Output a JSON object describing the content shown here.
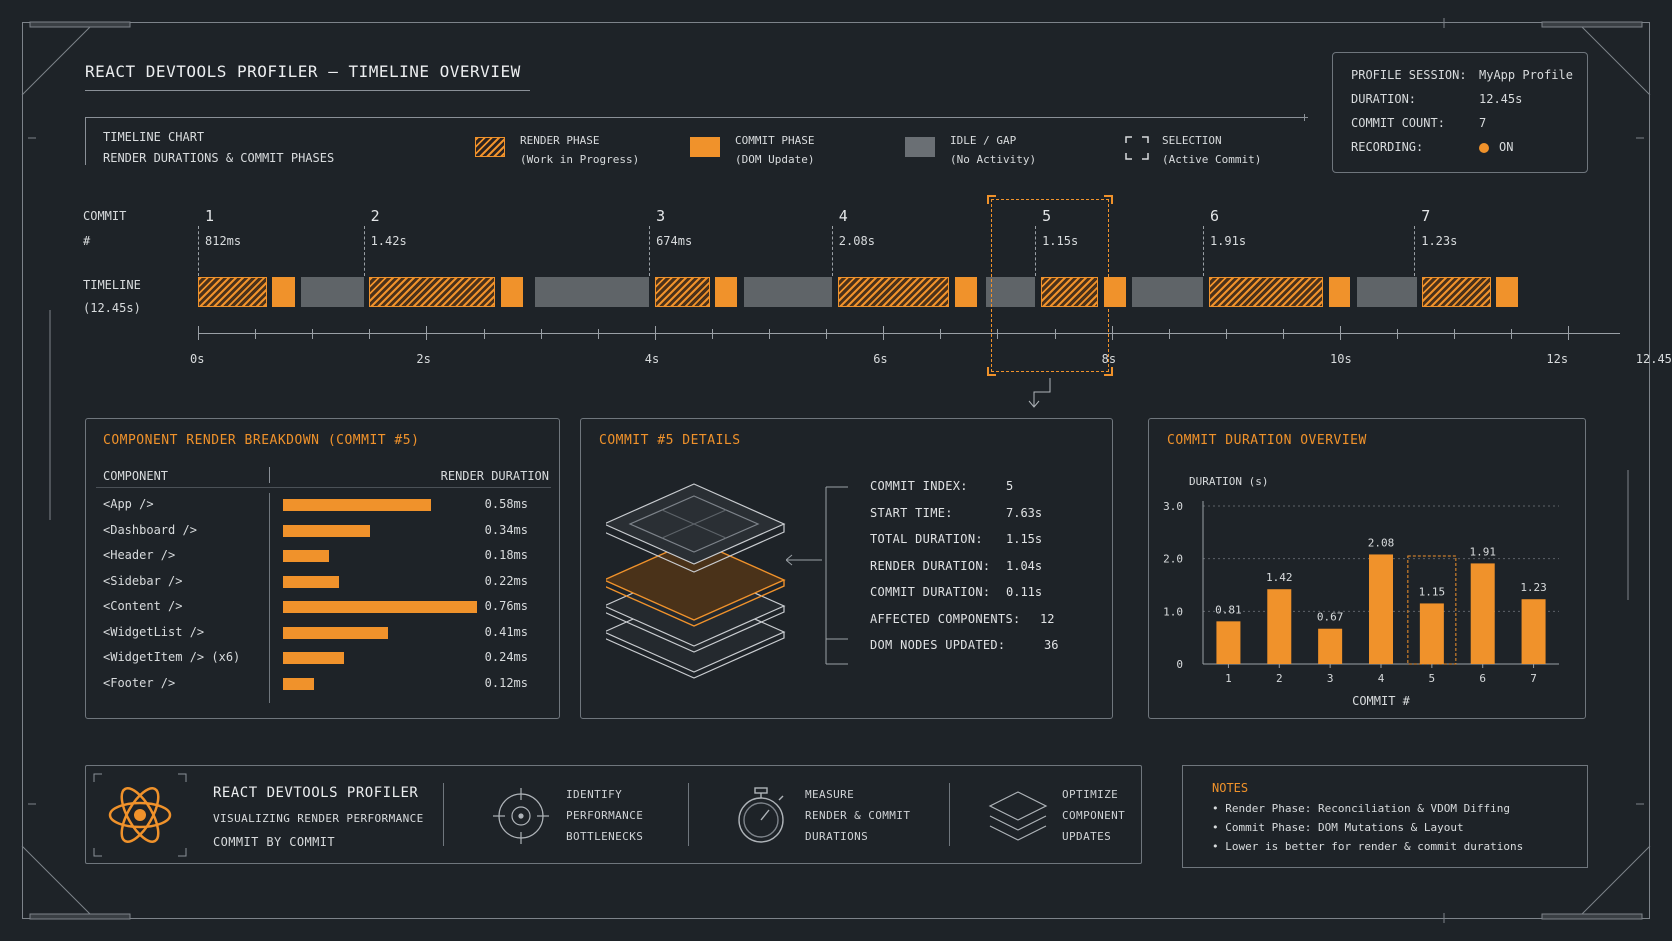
{
  "header": {
    "title": "REACT DEVTOOLS PROFILER – TIMELINE OVERVIEW"
  },
  "session": {
    "profile_label": "PROFILE SESSION:",
    "profile_value": "MyApp Profile",
    "duration_label": "DURATION:",
    "duration_value": "12.45s",
    "commit_count_label": "COMMIT COUNT:",
    "commit_count_value": "7",
    "recording_label": "RECORDING:",
    "recording_value": "ON",
    "recording_color": "#f0922b"
  },
  "legend": {
    "chart_title": "TIMELINE CHART",
    "chart_subtitle": "RENDER DURATIONS & COMMIT PHASES",
    "items": [
      {
        "label": "RENDER PHASE",
        "sub": "(Work in Progress)"
      },
      {
        "label": "COMMIT PHASE",
        "sub": "(DOM Update)"
      },
      {
        "label": "IDLE / GAP",
        "sub": "(No Activity)"
      },
      {
        "label": "SELECTION",
        "sub": "(Active Commit)"
      }
    ]
  },
  "timeline": {
    "commit_label": "COMMIT",
    "commit_hash": "#",
    "timeline_label": "TIMELINE",
    "timeline_total": "(12.45s)",
    "commits": [
      {
        "index": "1",
        "duration": "812ms"
      },
      {
        "index": "2",
        "duration": "1.42s"
      },
      {
        "index": "3",
        "duration": "674ms"
      },
      {
        "index": "4",
        "duration": "2.08s"
      },
      {
        "index": "5",
        "duration": "1.15s"
      },
      {
        "index": "6",
        "duration": "1.91s"
      },
      {
        "index": "7",
        "duration": "1.23s"
      }
    ],
    "axis_labels": [
      "0s",
      "2s",
      "4s",
      "6s",
      "8s",
      "10s",
      "12s",
      "12.45s"
    ],
    "selected_commit": 5
  },
  "breakdown": {
    "title": "COMPONENT RENDER BREAKDOWN (COMMIT #5)",
    "col_component": "COMPONENT",
    "col_duration": "RENDER DURATION",
    "rows": [
      {
        "name": "<App />",
        "value": "0.58ms",
        "ms": 0.58
      },
      {
        "name": "<Dashboard />",
        "value": "0.34ms",
        "ms": 0.34
      },
      {
        "name": "<Header />",
        "value": "0.18ms",
        "ms": 0.18
      },
      {
        "name": "<Sidebar />",
        "value": "0.22ms",
        "ms": 0.22
      },
      {
        "name": "<Content />",
        "value": "0.76ms",
        "ms": 0.76
      },
      {
        "name": "<WidgetList />",
        "value": "0.41ms",
        "ms": 0.41
      },
      {
        "name": "<WidgetItem /> (x6)",
        "value": "0.24ms",
        "ms": 0.24
      },
      {
        "name": "<Footer />",
        "value": "0.12ms",
        "ms": 0.12
      }
    ]
  },
  "details": {
    "title": "COMMIT #5 DETAILS",
    "rows": [
      {
        "label": "COMMIT INDEX:",
        "value": "5"
      },
      {
        "label": "START TIME:",
        "value": "7.63s"
      },
      {
        "label": "TOTAL DURATION:",
        "value": "1.15s"
      },
      {
        "label": "RENDER DURATION:",
        "value": "1.04s"
      },
      {
        "label": "COMMIT DURATION:",
        "value": "0.11s"
      },
      {
        "label": "AFFECTED COMPONENTS:",
        "value": "12"
      },
      {
        "label": "DOM NODES UPDATED:",
        "value": "36"
      }
    ]
  },
  "overview": {
    "title": "COMMIT DURATION OVERVIEW"
  },
  "chart_data": {
    "type": "bar",
    "categories": [
      "1",
      "2",
      "3",
      "4",
      "5",
      "6",
      "7"
    ],
    "values": [
      0.81,
      1.42,
      0.67,
      2.08,
      1.15,
      1.91,
      1.23
    ],
    "value_labels": [
      "0.81",
      "1.42",
      "0.67",
      "2.08",
      "1.15",
      "1.91",
      "1.23"
    ],
    "xlabel": "COMMIT #",
    "ylabel": "DURATION (s)",
    "ylim": [
      0,
      3.0
    ],
    "yticks": [
      "0",
      "1.0",
      "2.0",
      "3.0"
    ],
    "highlight_category": "5",
    "bar_color": "#f0922b",
    "grid": true
  },
  "footer": {
    "brand_title": "REACT DEVTOOLS PROFILER",
    "brand_line1": "VISUALIZING RENDER PERFORMANCE",
    "brand_line2": "COMMIT BY COMMIT",
    "features": [
      {
        "icon": "crosshair-icon",
        "lines": [
          "IDENTIFY",
          "PERFORMANCE",
          "BOTTLENECKS"
        ]
      },
      {
        "icon": "stopwatch-icon",
        "lines": [
          "MEASURE",
          "RENDER & COMMIT",
          "DURATIONS"
        ]
      },
      {
        "icon": "layers-icon",
        "lines": [
          "OPTIMIZE",
          "COMPONENT",
          "UPDATES"
        ]
      }
    ]
  },
  "notes": {
    "title": "NOTES",
    "items": [
      "• Render Phase: Reconciliation & VDOM Diffing",
      "• Commit Phase: DOM Mutations & Layout",
      "• Lower is better for render & commit durations"
    ]
  }
}
